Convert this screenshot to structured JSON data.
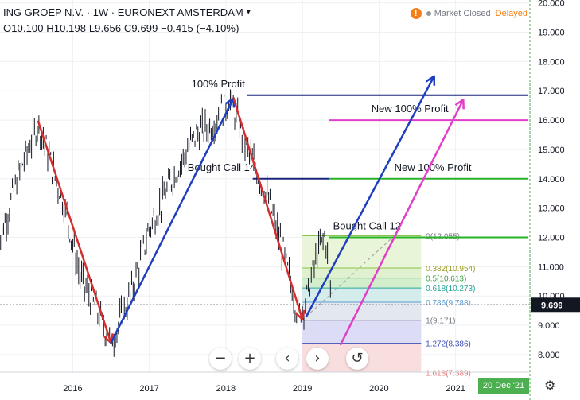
{
  "header": {
    "symbol": "ING GROEP N.V. · 1W · EURONEXT AMSTERDAM",
    "ohlc": "O10.100  H10.198  L9.656  C9.699  −0.415 (−4.10%)"
  },
  "status": {
    "warning_glyph": "!",
    "market": "Market Closed",
    "delayed": "Delayed"
  },
  "controls": {
    "zoom_out": "−",
    "zoom_in": "+",
    "back": "‹",
    "forward": "›",
    "reset": "↺"
  },
  "footer": {
    "date_badge": "20 Dec '21"
  },
  "colors": {
    "red": "#d32f2f",
    "blue": "#1f3fbf",
    "magenta": "#e040c8",
    "green": "#27b327",
    "navy": "#1a237e",
    "badge_green": "#4caf50"
  },
  "chart_data": {
    "type": "bar",
    "y_ticks": [
      8.0,
      9.0,
      10.0,
      11.0,
      12.0,
      13.0,
      14.0,
      15.0,
      16.0,
      17.0,
      18.0,
      19.0,
      20.0
    ],
    "y_tick_labels": [
      "8.000",
      "9.000",
      "10.000",
      "11.000",
      "12.000",
      "13.000",
      "14.000",
      "15.000",
      "16.000",
      "17.000",
      "18.000",
      "19.000",
      "20.000"
    ],
    "x_ticks": [
      2016,
      2017,
      2018,
      2019,
      2020,
      2021
    ],
    "x_tick_labels": [
      "2016",
      "2017",
      "2018",
      "2019",
      "2020",
      "2021"
    ],
    "ylim": [
      7.4,
      20.1
    ],
    "xlim": [
      2015.05,
      2021.97
    ],
    "last_price": 9.699,
    "last_price_label": "9.699",
    "price_path": [
      [
        2015.0,
        11.5
      ],
      [
        2015.3,
        14.2
      ],
      [
        2015.55,
        15.9
      ],
      [
        2015.9,
        13.0
      ],
      [
        2016.1,
        10.6
      ],
      [
        2016.3,
        9.6
      ],
      [
        2016.5,
        8.4
      ],
      [
        2016.75,
        10.0
      ],
      [
        2017.0,
        12.3
      ],
      [
        2017.3,
        14.0
      ],
      [
        2017.6,
        15.5
      ],
      [
        2017.85,
        15.9
      ],
      [
        2018.05,
        16.7
      ],
      [
        2018.3,
        14.9
      ],
      [
        2018.55,
        13.3
      ],
      [
        2018.75,
        11.5
      ],
      [
        2018.95,
        9.3
      ],
      [
        2019.05,
        9.9
      ],
      [
        2019.2,
        11.5
      ],
      [
        2019.3,
        12.1
      ],
      [
        2019.38,
        9.7
      ]
    ],
    "swing_lines": [
      {
        "color": "red",
        "from": [
          2015.55,
          15.95
        ],
        "to": [
          2016.5,
          8.4
        ]
      },
      {
        "color": "blue",
        "from": [
          2016.5,
          8.4
        ],
        "to": [
          2018.1,
          16.75
        ],
        "arrow": true
      },
      {
        "color": "red",
        "from": [
          2018.1,
          16.75
        ],
        "to": [
          2019.0,
          9.2
        ]
      },
      {
        "color": "blue",
        "from": [
          2019.05,
          9.3
        ],
        "to": [
          2020.72,
          17.5
        ],
        "arrow": true
      },
      {
        "color": "magenta",
        "from": [
          2019.5,
          8.35
        ],
        "to": [
          2021.1,
          16.7
        ],
        "arrow": true
      }
    ],
    "levels": [
      {
        "label": "100% Profit",
        "value": 16.85,
        "color": "navy",
        "from": 2018.28,
        "to": 2021.95,
        "label_at": 2017.55
      },
      {
        "label": "New 100% Profit",
        "value": 16.0,
        "color": "magenta",
        "from": 2019.35,
        "to": 2021.95,
        "label_at": 2019.9
      },
      {
        "label": "Bought Call 14",
        "value": 14.0,
        "color": "navy",
        "from": 2018.35,
        "to": 2019.35,
        "label_at": 2017.5
      },
      {
        "label": "New 100% Profit",
        "value": 14.0,
        "color": "green",
        "from": 2019.35,
        "to": 2021.95,
        "label_at": 2020.2
      },
      {
        "label": "Bought Call 12",
        "value": 12.0,
        "color": "green",
        "from": 2019.35,
        "to": 2021.95,
        "label_at": 2019.4
      }
    ],
    "fibonacci": {
      "x_from": 2019.0,
      "x_to": 2020.55,
      "levels": [
        {
          "ratio": "0",
          "value": 12.055,
          "label": "0(12.055)"
        },
        {
          "ratio": "0.382",
          "value": 10.954,
          "label": "0.382(10.954)"
        },
        {
          "ratio": "0.5",
          "value": 10.613,
          "label": "0.5(10.613)"
        },
        {
          "ratio": "0.618",
          "value": 10.273,
          "label": "0.618(10.273)"
        },
        {
          "ratio": "0.786",
          "value": 9.788,
          "label": "0.786(9.788)"
        },
        {
          "ratio": "1",
          "value": 9.171,
          "label": "1(9.171)"
        },
        {
          "ratio": "1.272",
          "value": 8.386,
          "label": "1.272(8.386)"
        },
        {
          "ratio": "1.618",
          "value": 7.389,
          "label": "1.618(7.389)"
        }
      ]
    }
  }
}
